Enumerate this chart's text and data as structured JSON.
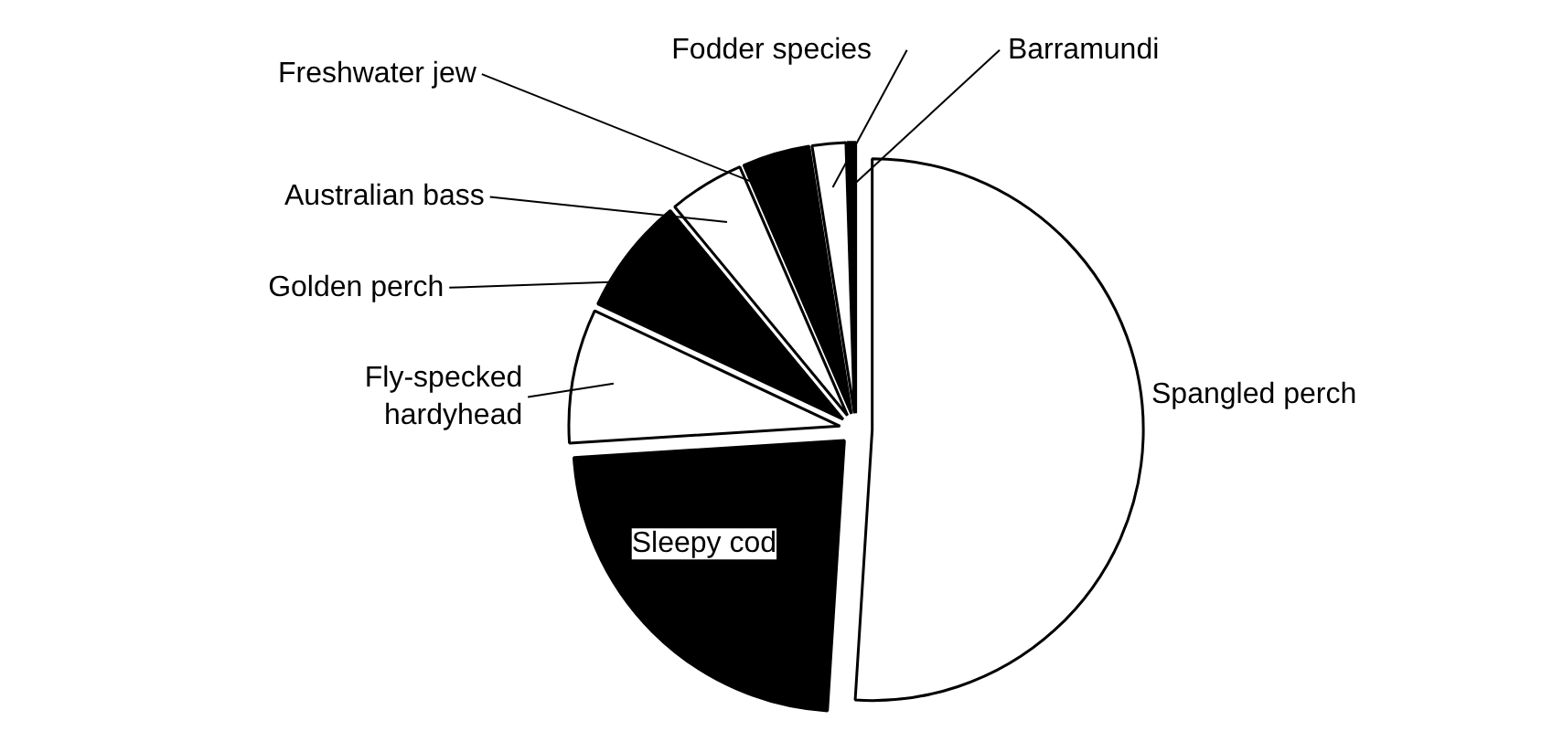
{
  "chart_data": {
    "type": "pie",
    "categories": [
      "Spangled perch",
      "Sleepy cod",
      "Fly-specked hardyhead",
      "Golden perch",
      "Australian bass",
      "Freshwater jew",
      "Fodder species",
      "Barramundi"
    ],
    "values": [
      51,
      23,
      8,
      7,
      4.5,
      4,
      2,
      0.5
    ],
    "colors": [
      "#ffffff",
      "#000000",
      "#ffffff",
      "#000000",
      "#ffffff",
      "#000000",
      "#ffffff",
      "#000000"
    ],
    "legend": false
  }
}
